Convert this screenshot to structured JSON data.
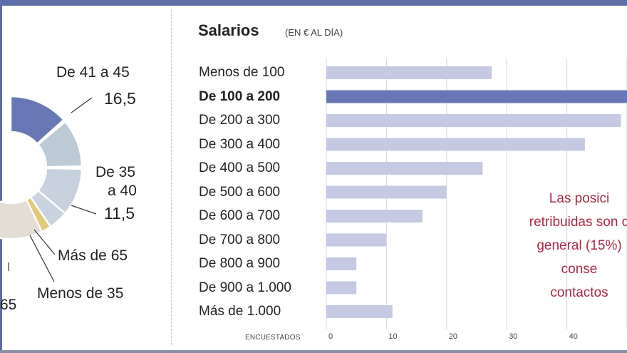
{
  "colors": {
    "accent": "#5b6ea6",
    "bar": "#c5c9e4",
    "bar_highlight": "#6878b4",
    "note": "#a82a45"
  },
  "chart_data": [
    {
      "type": "pie",
      "variant": "donut",
      "title": "",
      "segments": [
        {
          "label": "",
          "value": null,
          "color": "#6878b4"
        },
        {
          "label": "De 41 a 45",
          "value": 16.5,
          "color": "#bccad6"
        },
        {
          "label": "De 35 a 40",
          "value": 11.5,
          "color": "#c6d1dd"
        },
        {
          "label": "Más de 65",
          "value": null,
          "color": "#c9d3df"
        },
        {
          "label": "Menos de 35",
          "value": null,
          "color": "#e2c879"
        },
        {
          "label": "",
          "value": null,
          "color": "#e3ddd3"
        }
      ],
      "labels": {
        "de41": "De 41 a 45",
        "v41": "16,5",
        "de35a": "De 35",
        "de35b": "a 40",
        "v35": "11,5",
        "mas65": "Más de 65",
        "menos35": "Menos de 35",
        "partial": "65"
      },
      "note": "chart is cropped at the left edge"
    },
    {
      "type": "bar",
      "orientation": "horizontal",
      "title": "Salarios",
      "subtitle": "(EN € AL DÍA)",
      "xlabel": "ENCUESTADOS",
      "categories": [
        "Menos de 100",
        "De 100 a 200",
        "De 200 a 300",
        "De 300 a 400",
        "De 400 a 500",
        "De 500 a 600",
        "De 600 a 700",
        "De 700 a 800",
        "De 800 a 900",
        "De 900 a 1.000",
        "Más de 1.000"
      ],
      "values": [
        27.5,
        50,
        49,
        43,
        26,
        20,
        16,
        10,
        5,
        5,
        11
      ],
      "highlight_index": 1,
      "xlim": [
        0,
        50
      ],
      "xticks": [
        "0",
        "10",
        "20",
        "30",
        "40"
      ],
      "note_lines": [
        "Las posici",
        "retribuidas son d",
        "general (15%)",
        "conse",
        "contactos"
      ]
    }
  ]
}
